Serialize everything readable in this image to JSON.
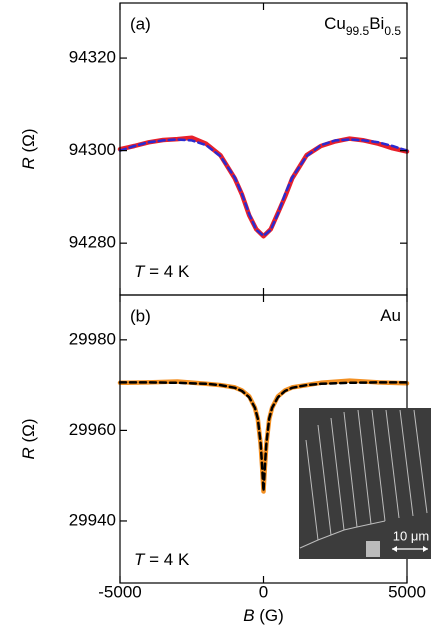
{
  "chart_data": [
    {
      "type": "line",
      "panel_label": "(a)",
      "annotation_parts": [
        "Cu",
        "99.5",
        "Bi",
        "0.5"
      ],
      "temperature_parts": [
        "T",
        " = 4 K"
      ],
      "ylabel_parts": [
        "R",
        " (Ω)"
      ],
      "xlim": [
        -5000,
        5000
      ],
      "xticks": [
        -5000,
        0,
        5000
      ],
      "ylim": [
        94268.8,
        94331.9
      ],
      "yticks": [
        94280,
        94300,
        94320
      ],
      "x": [
        -5000,
        -4500,
        -4000,
        -3500,
        -3000,
        -2500,
        -2000,
        -1500,
        -1000,
        -750,
        -500,
        -250,
        0,
        250,
        500,
        750,
        1000,
        1500,
        2000,
        2500,
        3000,
        3500,
        4000,
        4500,
        5000
      ],
      "series": [
        {
          "color": "#e8202a",
          "style": "solid",
          "values": [
            94300.3,
            94301,
            94301.8,
            94302.3,
            94302.5,
            94302.8,
            94301.5,
            94299,
            94294,
            94290.5,
            94286,
            94283,
            94281.5,
            94283,
            94286.5,
            94290,
            94294,
            94299,
            94301,
            94302,
            94302.6,
            94302.2,
            94301.5,
            94300.5,
            94299.8
          ]
        },
        {
          "color": "#2b2bd0",
          "style": "dashed",
          "values": [
            94300,
            94301,
            94301.8,
            94302.2,
            94302.4,
            94302.2,
            94301.2,
            94298.8,
            94294.2,
            94290.6,
            94286.3,
            94282.9,
            94281.6,
            94282.9,
            94286.3,
            94290.6,
            94294.2,
            94298.8,
            94301.2,
            94302.2,
            94302.4,
            94302.2,
            94301.8,
            94301,
            94300
          ]
        }
      ]
    },
    {
      "type": "line",
      "panel_label": "(b)",
      "annotation_parts": [
        "Au"
      ],
      "temperature_parts": [
        "T",
        " = 4 K"
      ],
      "ylabel_parts": [
        "R",
        " (Ω)"
      ],
      "xlabel_parts": [
        "B",
        " (G)"
      ],
      "inset_label": "10 μm",
      "xlim": [
        -5000,
        5000
      ],
      "xticks": [
        -5000,
        0,
        5000
      ],
      "ylim": [
        29926.3,
        29989.9
      ],
      "yticks": [
        29940,
        29960,
        29980
      ],
      "x": [
        -5000,
        -4000,
        -3000,
        -2000,
        -1500,
        -1000,
        -750,
        -500,
        -300,
        -200,
        -100,
        -50,
        0,
        50,
        100,
        200,
        300,
        500,
        750,
        1000,
        1500,
        2000,
        3000,
        4000,
        5000
      ],
      "series": [
        {
          "color": "#f39022",
          "style": "solid",
          "values": [
            29970.5,
            29970.6,
            29970.8,
            29970.3,
            29970,
            29969.5,
            29968.8,
            29967.5,
            29965,
            29962.5,
            29957,
            29952,
            29946.5,
            29952,
            29957,
            29962.5,
            29965,
            29967.5,
            29968.8,
            29969.5,
            29970,
            29970.5,
            29971,
            29970.6,
            29970.4
          ]
        },
        {
          "color": "#000000",
          "style": "dashed",
          "values": [
            29970.6,
            29970.6,
            29970.5,
            29970.3,
            29970,
            29969.4,
            29968.7,
            29967.3,
            29965,
            29962.6,
            29957.2,
            29952.2,
            29946.6,
            29952.2,
            29957.2,
            29962.6,
            29965,
            29967.3,
            29968.7,
            29969.4,
            29970,
            29970.3,
            29970.5,
            29970.6,
            29970.6
          ]
        }
      ]
    }
  ]
}
